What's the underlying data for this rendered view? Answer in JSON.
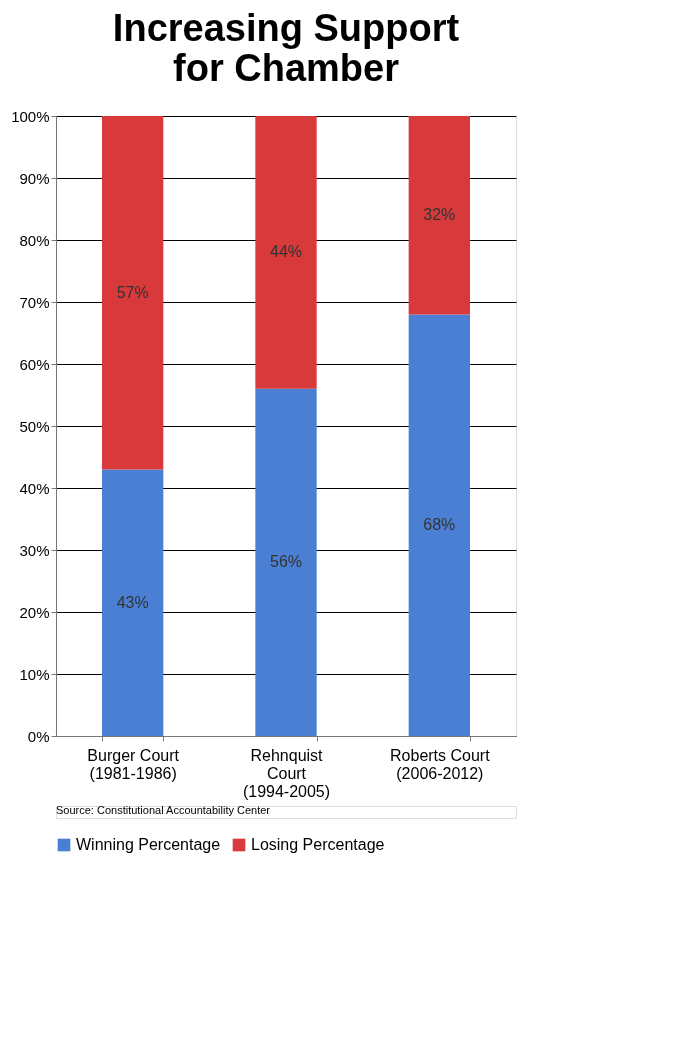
{
  "chart_data": {
    "type": "bar",
    "title": "Increasing Support for Chamber",
    "categories": [
      "Burger Court (1981-1986)",
      "Rehnquist Court (1994-2005)",
      "Roberts Court (2006-2012)"
    ],
    "stacked": true,
    "series": [
      {
        "name": "Winning Percentage",
        "color": "#4a7fd3",
        "values": [
          43,
          56,
          68
        ],
        "value_labels": [
          "43%",
          "56%",
          "68%"
        ]
      },
      {
        "name": "Losing Percentage",
        "color": "#d8393a",
        "values": [
          57,
          44,
          32
        ],
        "value_labels": [
          "57%",
          "44%",
          "32%"
        ]
      }
    ],
    "ylim": [
      0,
      100
    ],
    "yticks": [
      {
        "value": 0,
        "label": "0%"
      },
      {
        "value": 10,
        "label": "10%"
      },
      {
        "value": 20,
        "label": "20%"
      },
      {
        "value": 30,
        "label": "30%"
      },
      {
        "value": 40,
        "label": "40%"
      },
      {
        "value": 50,
        "label": "50%"
      },
      {
        "value": 60,
        "label": "60%"
      },
      {
        "value": 70,
        "label": "70%"
      },
      {
        "value": 80,
        "label": "80%"
      },
      {
        "value": 90,
        "label": "90%"
      },
      {
        "value": 100,
        "label": "100%"
      }
    ],
    "grid": "y",
    "legend": "bottom",
    "annotations": [
      "Source: Constitutional Accountability Center"
    ]
  }
}
